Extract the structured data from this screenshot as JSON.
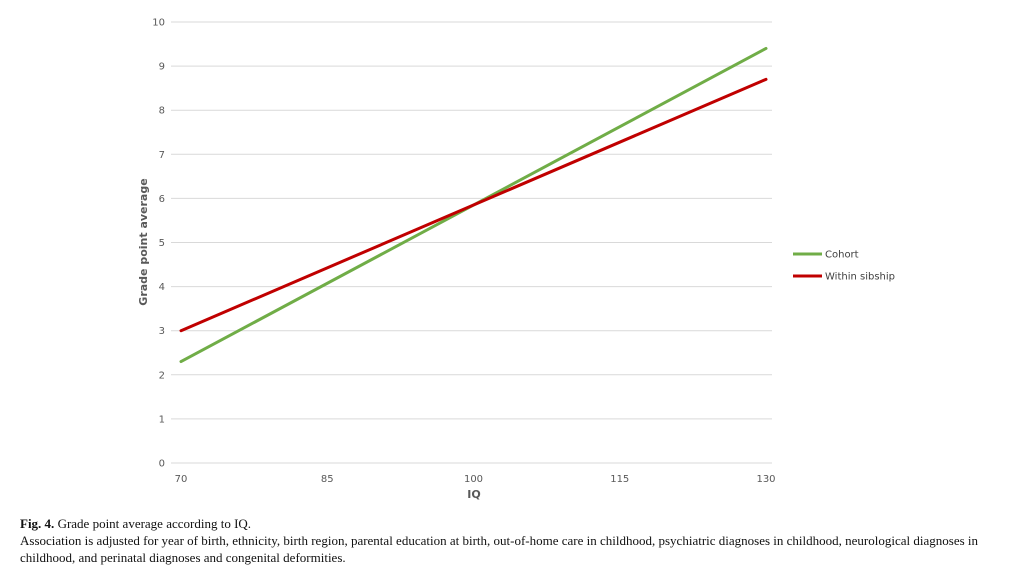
{
  "chart_data": {
    "type": "line",
    "xlabel": "IQ",
    "ylabel": "Grade point average",
    "xlim": [
      70,
      130
    ],
    "ylim": [
      0,
      10
    ],
    "xticks": [
      "70",
      "85",
      "100",
      "115",
      "130"
    ],
    "yticks": [
      "0",
      "1",
      "2",
      "3",
      "4",
      "5",
      "6",
      "7",
      "8",
      "9",
      "10"
    ],
    "grid": "horizontal",
    "legend": "right",
    "series": [
      {
        "name": "Cohort",
        "color": "#70AD47",
        "x": [
          70,
          130
        ],
        "y": [
          2.3,
          9.4
        ]
      },
      {
        "name": "Within sibship",
        "color": "#C00000",
        "x": [
          70,
          130
        ],
        "y": [
          3.0,
          8.7
        ]
      }
    ]
  },
  "caption": {
    "label": "Fig. 4.",
    "title": "Grade point average according to IQ.",
    "text": "Association is adjusted for year of birth, ethnicity, birth region, parental education at birth, out-of-home care in childhood, psychiatric diagnoses in childhood, neurological diagnoses in childhood, and perinatal diagnoses and congenital deformities."
  }
}
